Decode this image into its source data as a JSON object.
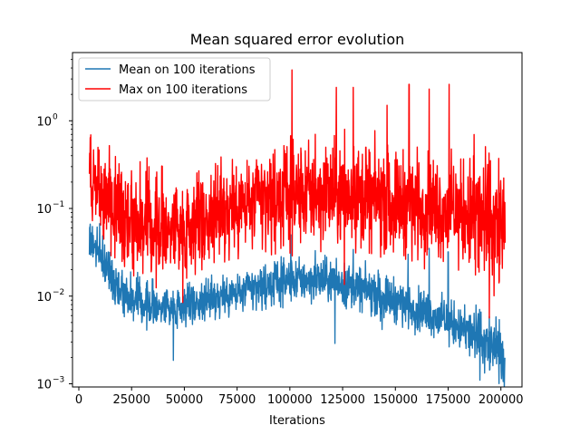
{
  "chart_data": {
    "type": "line",
    "title": "Mean squared error evolution",
    "xlabel": "Iterations",
    "ylabel": "",
    "yscale": "log",
    "xlim": [
      -3000,
      210000
    ],
    "ylim": [
      0.00092,
      6.0
    ],
    "grid": false,
    "legend_position": "top-left",
    "x_ticks": [
      0,
      25000,
      50000,
      75000,
      100000,
      125000,
      150000,
      175000,
      200000
    ],
    "x_tick_labels": [
      "0",
      "25000",
      "50000",
      "75000",
      "100000",
      "125000",
      "150000",
      "175000",
      "200000"
    ],
    "y_ticks": [
      0.001,
      0.01,
      0.1,
      1
    ],
    "y_tick_labels": [
      "10",
      "10",
      "10",
      "10"
    ],
    "y_tick_exponents": [
      "−3",
      "−2",
      "−1",
      "0"
    ],
    "series": [
      {
        "name": "Mean on 100 iterations",
        "color": "#1f77b4",
        "x_start": 5000,
        "x_end": 202000,
        "baseline": [
          [
            5000,
            0.05
          ],
          [
            10000,
            0.03
          ],
          [
            15000,
            0.018
          ],
          [
            20000,
            0.012
          ],
          [
            25000,
            0.0095
          ],
          [
            30000,
            0.0085
          ],
          [
            35000,
            0.008
          ],
          [
            40000,
            0.0077
          ],
          [
            45000,
            0.0078
          ],
          [
            50000,
            0.008
          ],
          [
            60000,
            0.0088
          ],
          [
            70000,
            0.01
          ],
          [
            80000,
            0.0115
          ],
          [
            90000,
            0.0135
          ],
          [
            100000,
            0.015
          ],
          [
            110000,
            0.0155
          ],
          [
            120000,
            0.0148
          ],
          [
            130000,
            0.013
          ],
          [
            140000,
            0.011
          ],
          [
            150000,
            0.009
          ],
          [
            160000,
            0.0072
          ],
          [
            170000,
            0.0058
          ],
          [
            180000,
            0.0045
          ],
          [
            190000,
            0.0032
          ],
          [
            200000,
            0.0022
          ],
          [
            202000,
            0.002
          ]
        ],
        "spread": 0.12,
        "spikes": [
          [
            100500,
            0.05
          ],
          [
            112000,
            0.033
          ],
          [
            122000,
            0.027
          ],
          [
            130000,
            0.034
          ],
          [
            156000,
            0.03
          ],
          [
            166000,
            0.035
          ],
          [
            175000,
            0.032
          ]
        ]
      },
      {
        "name": "Max on 100 iterations",
        "color": "#ff0000",
        "x_start": 5000,
        "x_end": 202000,
        "baseline": [
          [
            5000,
            0.3
          ],
          [
            10000,
            0.16
          ],
          [
            15000,
            0.12
          ],
          [
            20000,
            0.1
          ],
          [
            25000,
            0.08
          ],
          [
            30000,
            0.07
          ],
          [
            35000,
            0.065
          ],
          [
            40000,
            0.063
          ],
          [
            50000,
            0.065
          ],
          [
            60000,
            0.075
          ],
          [
            70000,
            0.09
          ],
          [
            80000,
            0.11
          ],
          [
            90000,
            0.125
          ],
          [
            100000,
            0.14
          ],
          [
            110000,
            0.145
          ],
          [
            120000,
            0.145
          ],
          [
            130000,
            0.14
          ],
          [
            140000,
            0.13
          ],
          [
            150000,
            0.12
          ],
          [
            160000,
            0.11
          ],
          [
            170000,
            0.1
          ],
          [
            180000,
            0.09
          ],
          [
            190000,
            0.075
          ],
          [
            200000,
            0.06
          ],
          [
            202000,
            0.06
          ]
        ],
        "spread": 0.28,
        "spikes": [
          [
            101000,
            3.8
          ],
          [
            112000,
            0.7
          ],
          [
            117000,
            0.5
          ],
          [
            122000,
            2.4
          ],
          [
            126000,
            0.8
          ],
          [
            130000,
            2.4
          ],
          [
            136000,
            0.5
          ],
          [
            146000,
            1.5
          ],
          [
            156500,
            2.6
          ],
          [
            166000,
            2.3
          ],
          [
            175500,
            2.6
          ],
          [
            187000,
            0.4
          ],
          [
            195000,
            0.35
          ]
        ]
      }
    ]
  }
}
